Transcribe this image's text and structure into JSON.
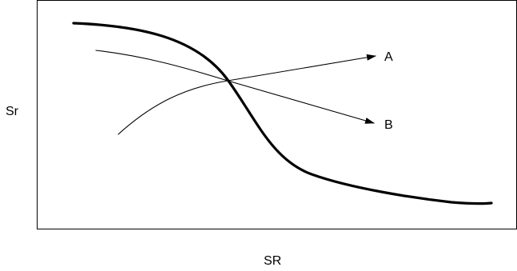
{
  "axes": {
    "y_label": "Sr",
    "x_label": "SR"
  },
  "curves": [
    {
      "label": "A",
      "arrow": true
    },
    {
      "label": "B",
      "arrow": true
    },
    {
      "label": "",
      "arrow": false,
      "emphasis": "bold"
    }
  ],
  "colors": {
    "stroke": "#000000",
    "background": "#ffffff"
  }
}
